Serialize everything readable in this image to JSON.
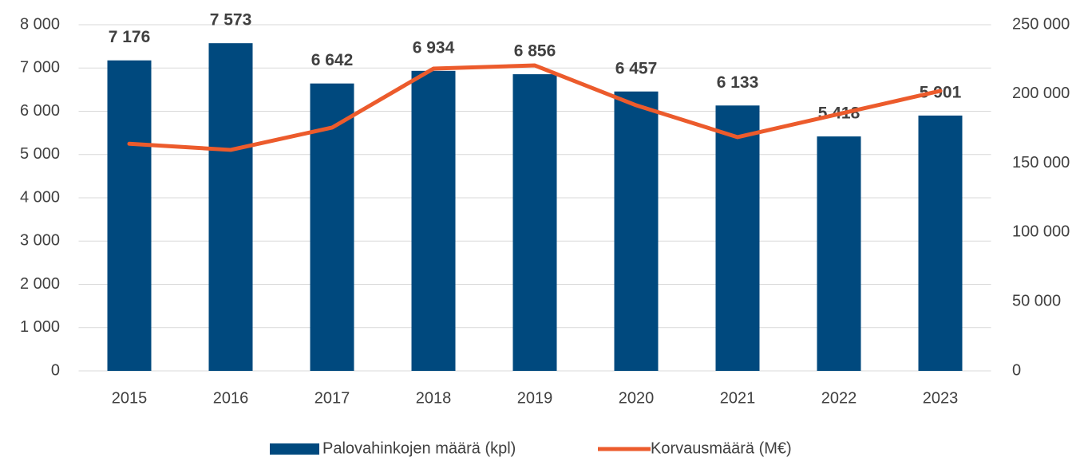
{
  "chart_data": {
    "type": "bar_line",
    "categories": [
      "2015",
      "2016",
      "2017",
      "2018",
      "2019",
      "2020",
      "2021",
      "2022",
      "2023"
    ],
    "series": [
      {
        "name": "Palovahinkojen määrä (kpl)",
        "color": "#00497e",
        "type": "bar",
        "values": [
          7176,
          7573,
          6642,
          6934,
          6856,
          6457,
          6133,
          5418,
          5901
        ],
        "value_labels": [
          "7 176",
          "7 573",
          "6 642",
          "6 934",
          "6 856",
          "6 457",
          "6 133",
          "5 418",
          "5 901"
        ]
      },
      {
        "name": "Korvausmäärä (M€)",
        "color": "#ec5b2c",
        "type": "line",
        "axis": "y2",
        "values": [
          164000,
          159600,
          175700,
          218300,
          220600,
          191800,
          168800,
          185500,
          202200
        ]
      }
    ],
    "ylim": [
      0,
      8000
    ],
    "yticks": [
      0,
      {
        "value": 1000,
        "label": "1 000"
      },
      {
        "value": 2000,
        "label": "2 000"
      },
      {
        "value": 3000,
        "label": "3 000"
      },
      {
        "value": 4000,
        "label": "4 000"
      },
      {
        "value": 5000,
        "label": "5 000"
      },
      {
        "value": 6000,
        "label": "6 000"
      },
      {
        "value": 7000,
        "label": "7 000"
      },
      {
        "value": 8000,
        "label": "8 000"
      }
    ],
    "y2lim": [
      0,
      250000
    ],
    "y2ticks": [
      0,
      {
        "value": 50000,
        "label": "50 000"
      },
      {
        "value": 100000,
        "label": "100 000"
      },
      {
        "value": 150000,
        "label": "150 000"
      },
      {
        "value": 200000,
        "label": "200 000"
      },
      {
        "value": 250000,
        "label": "250 000"
      }
    ],
    "grid": true,
    "legend": "bottom"
  }
}
